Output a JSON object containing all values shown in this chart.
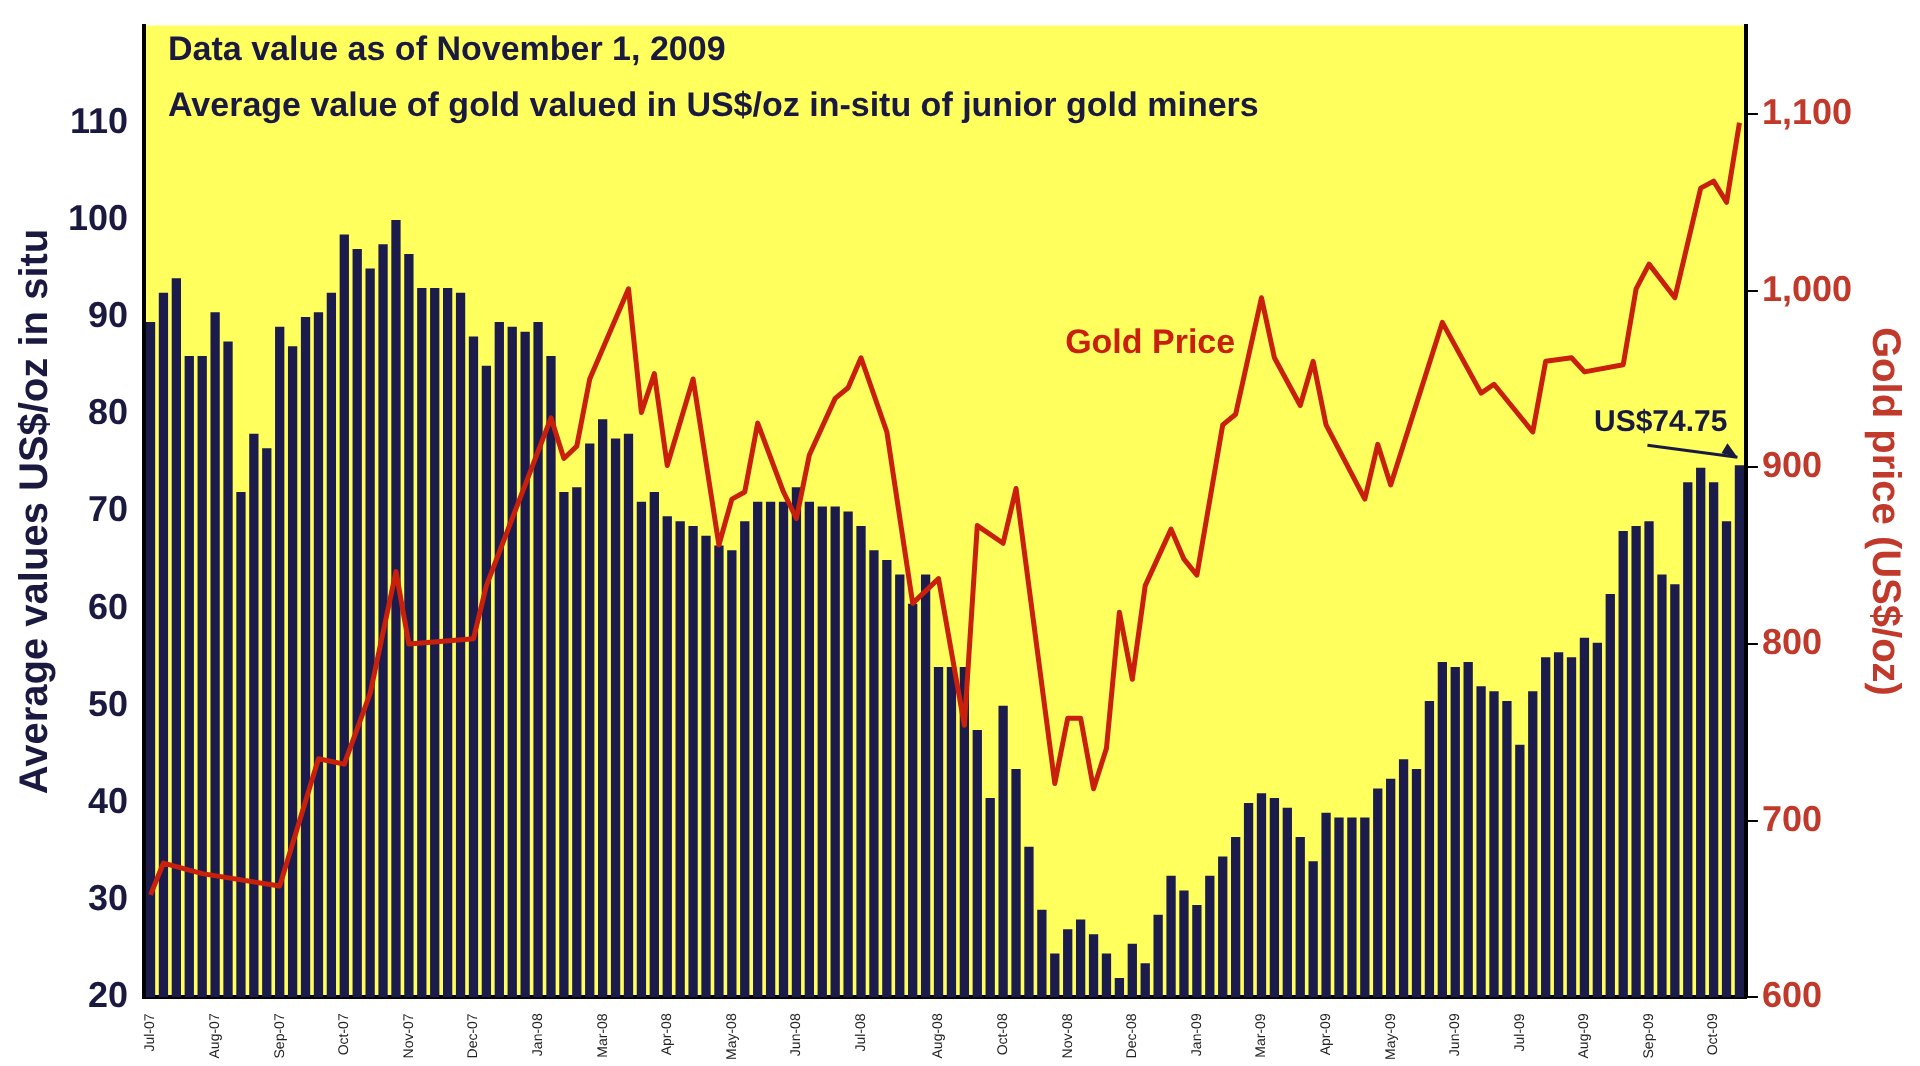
{
  "chart_data": {
    "type": "bar",
    "title": "Data value as of November 1, 2009",
    "subtitle": "Average value of gold valued in US$/oz in-situ of junior gold miners",
    "ylabel": "Average values US$/oz in situ",
    "y2label": "Gold price (US$/oz)",
    "categories": [
      "Jul-07",
      null,
      null,
      null,
      null,
      "Aug-07",
      null,
      null,
      null,
      null,
      "Sep-07",
      null,
      null,
      null,
      null,
      "Oct-07",
      null,
      null,
      null,
      null,
      "Nov-07",
      null,
      null,
      null,
      null,
      "Dec-07",
      null,
      null,
      null,
      null,
      "Jan-08",
      null,
      null,
      null,
      null,
      "Mar-08",
      null,
      null,
      null,
      null,
      "Apr-08",
      null,
      null,
      null,
      null,
      "May-08",
      null,
      null,
      null,
      null,
      "Jun-08",
      null,
      null,
      null,
      null,
      "Jul-08",
      null,
      null,
      null,
      null,
      null,
      "Aug-08",
      null,
      null,
      null,
      null,
      "Oct-08",
      null,
      null,
      null,
      null,
      "Nov-08",
      null,
      null,
      null,
      null,
      "Dec-08",
      null,
      null,
      null,
      null,
      "Jan-09",
      null,
      null,
      null,
      null,
      "Mar-09",
      null,
      null,
      null,
      null,
      "Apr-09",
      null,
      null,
      null,
      null,
      "May-09",
      null,
      null,
      null,
      null,
      "Jun-09",
      null,
      null,
      null,
      null,
      "Jul-09",
      null,
      null,
      null,
      null,
      "Aug-09",
      null,
      null,
      null,
      null,
      "Sep-09",
      null,
      null,
      null,
      null,
      "Oct-09",
      null,
      null
    ],
    "series": [
      {
        "color": "#1c1c4c",
        "values": [
          89.5,
          92.5,
          94,
          86,
          86,
          90.5,
          87.5,
          72,
          78,
          76.5,
          89,
          87,
          90,
          90.5,
          92.5,
          98.5,
          97,
          95,
          97.5,
          100,
          96.5,
          93,
          93,
          93,
          92.5,
          88,
          85,
          89.5,
          89,
          88.5,
          89.5,
          86,
          72,
          72.5,
          77,
          79.5,
          77.5,
          78,
          71,
          72,
          69.5,
          69,
          68.5,
          67.5,
          66.5,
          66,
          69,
          71,
          71,
          71,
          72.5,
          71,
          70.5,
          70.5,
          70,
          68.5,
          66,
          65,
          63.5,
          60.5,
          63.5,
          54,
          54,
          54,
          47.5,
          40.5,
          50,
          43.5,
          35.5,
          29,
          24.5,
          27,
          28,
          26.5,
          24.5,
          22,
          25.5,
          23.5,
          28.5,
          32.5,
          31,
          29.5,
          32.5,
          34.5,
          36.5,
          40,
          41,
          40.5,
          39.5,
          36.5,
          34,
          39,
          38.5,
          38.5,
          38.5,
          41.5,
          42.5,
          44.5,
          43.5,
          50.5,
          54.5,
          54,
          54.5,
          52,
          51.5,
          50.5,
          46,
          51.5,
          55,
          55.5,
          55,
          57,
          56.5,
          61.5,
          68,
          68.5,
          69,
          63.5,
          62.5,
          73,
          74.5,
          73,
          69,
          74.75
        ],
        "value_labels": [
          null,
          null,
          null,
          null,
          null,
          null,
          null,
          null,
          null,
          null,
          null,
          null,
          null,
          null,
          null,
          null,
          null,
          null,
          null,
          null,
          null,
          null,
          null,
          null,
          null,
          null,
          null,
          null,
          null,
          null,
          null,
          null,
          null,
          null,
          null,
          null,
          null,
          null,
          null,
          null,
          null,
          null,
          null,
          null,
          null,
          null,
          null,
          null,
          null,
          null,
          null,
          null,
          null,
          null,
          null,
          null,
          null,
          null,
          null,
          null,
          null,
          null,
          null,
          null,
          null,
          null,
          null,
          null,
          null,
          null,
          null,
          null,
          null,
          null,
          null,
          null,
          null,
          null,
          null,
          null,
          null,
          null,
          null,
          null,
          null,
          null,
          null,
          null,
          null,
          null,
          null,
          null,
          null,
          null,
          null,
          null,
          null,
          null,
          null,
          null,
          null,
          null,
          null,
          null,
          null,
          null,
          null,
          null,
          null,
          null,
          null,
          null,
          null,
          null,
          null,
          null,
          null,
          null,
          null,
          null,
          null,
          null,
          null,
          "US$74.75"
        ]
      },
      {
        "type": "line",
        "name": "Gold Price",
        "axis": "y2",
        "color": "#c8200c",
        "values": [
          658,
          676,
          null,
          null,
          670,
          null,
          null,
          null,
          null,
          null,
          663,
          null,
          null,
          735,
          null,
          732,
          null,
          772,
          null,
          841,
          800,
          null,
          null,
          null,
          null,
          803,
          833,
          null,
          null,
          null,
          null,
          928,
          905,
          912,
          950,
          null,
          null,
          1001,
          931,
          953,
          901,
          null,
          950,
          null,
          856,
          882,
          886,
          925,
          null,
          886,
          871,
          907,
          null,
          939,
          945,
          962,
          null,
          920,
          null,
          823,
          null,
          837,
          null,
          754,
          867,
          null,
          857,
          888,
          null,
          null,
          721,
          758,
          758,
          718,
          741,
          818,
          780,
          833,
          null,
          865,
          848,
          839,
          null,
          924,
          930,
          null,
          996,
          962,
          null,
          935,
          960,
          924,
          null,
          null,
          882,
          913,
          890,
          null,
          null,
          null,
          982,
          null,
          null,
          942,
          947,
          null,
          null,
          920,
          960,
          null,
          962,
          954,
          null,
          null,
          958,
          1001,
          1015,
          null,
          996,
          null,
          1058,
          1062,
          1050,
          1095
        ]
      }
    ],
    "ylim": [
      20,
      120
    ],
    "yticks": [
      20,
      30,
      40,
      50,
      60,
      70,
      80,
      90,
      100,
      110
    ],
    "y2lim": [
      600,
      1150
    ],
    "y2ticks": [
      600,
      700,
      800,
      900,
      {
        "value": 1000,
        "label": "1,000"
      },
      {
        "value": 1100,
        "label": "1,100"
      }
    ],
    "grid": false,
    "legend": false,
    "marker": "none",
    "line_style": "solid"
  }
}
